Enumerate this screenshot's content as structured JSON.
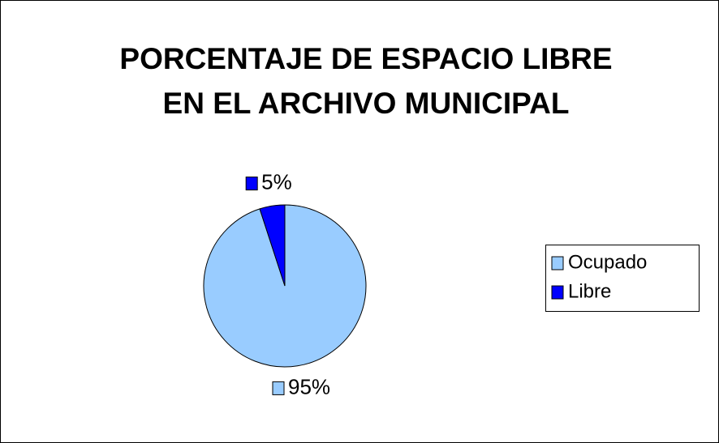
{
  "chart_data": {
    "type": "pie",
    "title": [
      "PORCENTAJE DE ESPACIO LIBRE",
      "EN EL ARCHIVO MUNICIPAL"
    ],
    "categories": [
      "Ocupado",
      "Libre"
    ],
    "values": [
      95,
      5
    ],
    "value_labels": [
      "95%",
      "5%"
    ],
    "colors": [
      "#99ccff",
      "#0000ff"
    ],
    "legend": "right"
  }
}
